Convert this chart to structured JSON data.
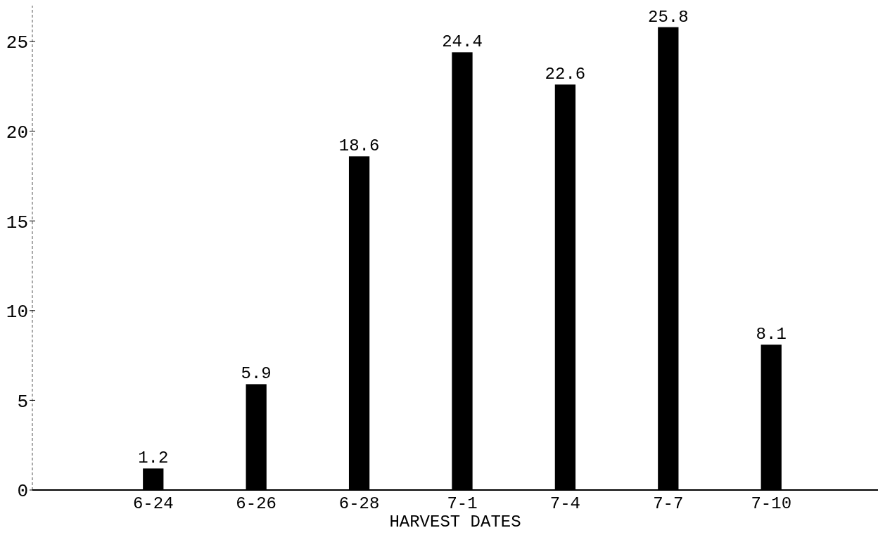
{
  "chart_data": {
    "type": "bar",
    "xlabel": "HARVEST DATES",
    "categories": [
      "6-24",
      "6-26",
      "6-28",
      "7-1",
      "7-4",
      "7-7",
      "7-10"
    ],
    "values": [
      1.2,
      5.9,
      18.6,
      24.4,
      22.6,
      25.8,
      8.1
    ],
    "color": "#000000",
    "ylim": [
      0,
      27
    ],
    "yticks": [
      0,
      5,
      10,
      15,
      20,
      25
    ],
    "grid": false,
    "data_labels": true
  }
}
